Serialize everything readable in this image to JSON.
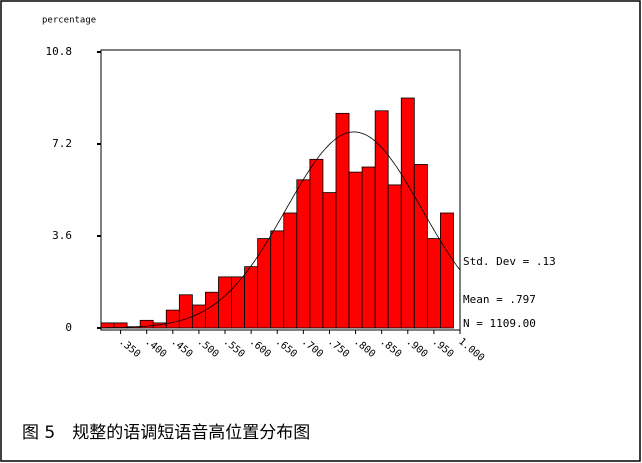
{
  "chart_data": {
    "type": "histogram",
    "y_label": "percentage",
    "bins": [
      0.3125,
      0.3375,
      0.3625,
      0.3875,
      0.4125,
      0.4375,
      0.4625,
      0.4875,
      0.5125,
      0.5375,
      0.5625,
      0.5875,
      0.6125,
      0.6375,
      0.6625,
      0.6875,
      0.7125,
      0.7375,
      0.7625,
      0.7875,
      0.8125,
      0.8375,
      0.8625,
      0.8875,
      0.9125,
      0.9375,
      0.9625,
      0.9875
    ],
    "values": [
      0.2,
      0.2,
      0.05,
      0.3,
      0.2,
      0.7,
      1.3,
      0.9,
      1.4,
      2.0,
      2.0,
      2.4,
      3.5,
      3.8,
      4.5,
      5.8,
      6.6,
      5.3,
      8.4,
      6.1,
      6.3,
      8.5,
      5.6,
      9.0,
      6.4,
      3.5,
      4.5
    ],
    "color": "#ff0000",
    "xlim": [
      0.3125,
      1.0
    ],
    "xticks": [
      {
        "value": 0.35,
        "label": ".350"
      },
      {
        "value": 0.4,
        "label": ".400"
      },
      {
        "value": 0.45,
        "label": ".450"
      },
      {
        "value": 0.5,
        "label": ".500"
      },
      {
        "value": 0.55,
        "label": ".550"
      },
      {
        "value": 0.6,
        "label": ".600"
      },
      {
        "value": 0.65,
        "label": ".650"
      },
      {
        "value": 0.7,
        "label": ".700"
      },
      {
        "value": 0.75,
        "label": ".750"
      },
      {
        "value": 0.8,
        "label": ".800"
      },
      {
        "value": 0.85,
        "label": ".850"
      },
      {
        "value": 0.9,
        "label": ".900"
      },
      {
        "value": 0.95,
        "label": ".950"
      },
      {
        "value": 1.0,
        "label": "1.000"
      }
    ],
    "ylim": [
      0,
      10.8
    ],
    "yticks": [
      0,
      3.6,
      7.2,
      10.8
    ],
    "std_dev": {
      "value": 0.13,
      "label": "Std. Dev = .13"
    },
    "mean": {
      "value": 0.797,
      "label": "Mean = .797"
    },
    "n": {
      "value": 1109,
      "label": "N = 1109.00"
    },
    "caption": "图 5　规整的语调短语音高位置分布图"
  }
}
